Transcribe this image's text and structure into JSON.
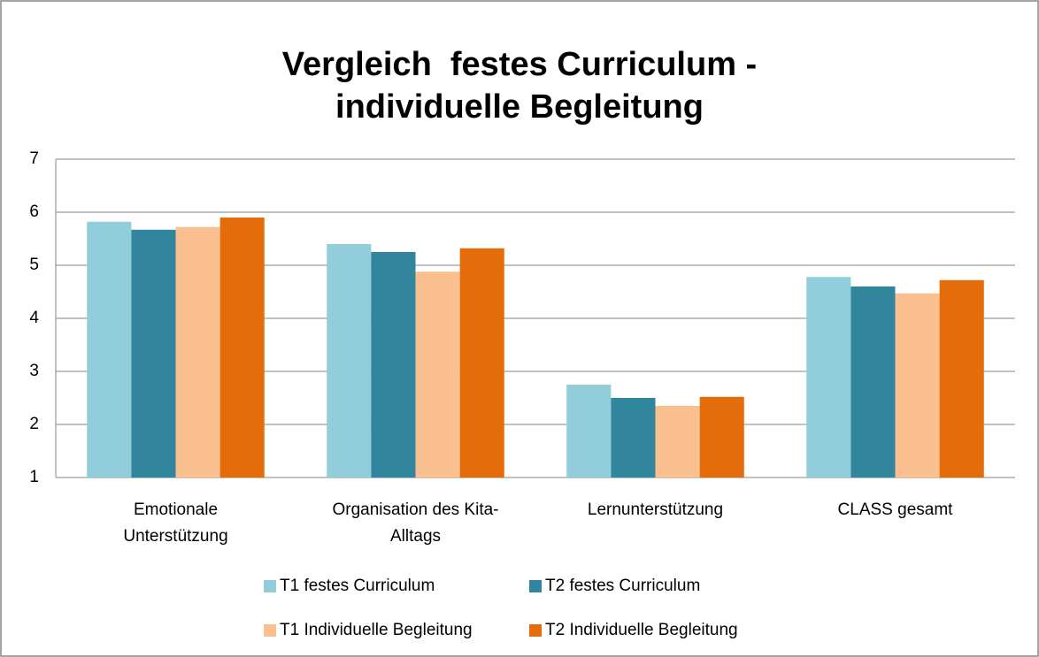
{
  "chart_data": {
    "type": "bar",
    "title": [
      "Vergleich  festes Curriculum -",
      "individuelle Begleitung"
    ],
    "categories": [
      "Emotionale Unterstützung",
      "Organisation des Kita-Alltags",
      "Lernunterstützung",
      "CLASS gesamt"
    ],
    "series": [
      {
        "name": "T1 festes Curriculum",
        "color": "#92cddc",
        "values": [
          5.82,
          5.4,
          2.75,
          4.78
        ]
      },
      {
        "name": "T2 festes Curriculum",
        "color": "#31859c",
        "values": [
          5.67,
          5.25,
          2.5,
          4.6
        ]
      },
      {
        "name": "T1 Individuelle Begleitung",
        "color": "#fac090",
        "values": [
          5.72,
          4.88,
          2.35,
          4.47
        ]
      },
      {
        "name": "T2 Individuelle Begleitung",
        "color": "#e46c0a",
        "values": [
          5.9,
          5.32,
          2.52,
          4.72
        ]
      }
    ],
    "ylim": [
      1,
      7
    ],
    "yticks": [
      1,
      2,
      3,
      4,
      5,
      6,
      7
    ],
    "grid": true,
    "legend": "bottom"
  }
}
